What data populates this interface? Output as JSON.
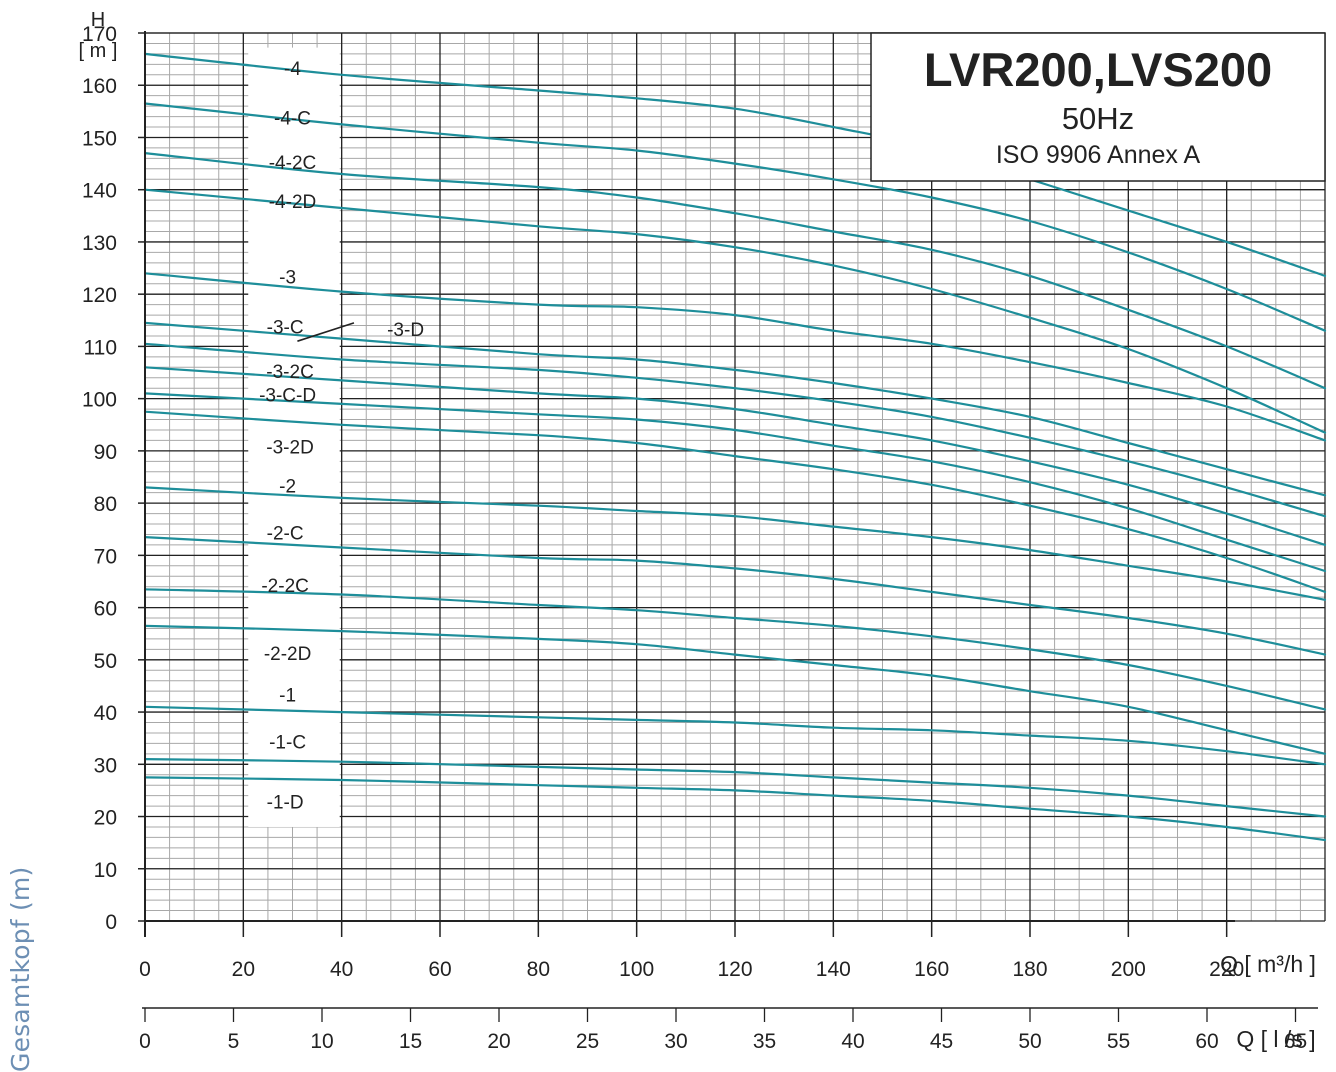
{
  "side_label": "Gesamtkopf (m)",
  "chart_data": {
    "type": "line",
    "title": "LVR200,LVS200",
    "subtitle_lines": [
      "50Hz",
      "ISO 9906  Annex A"
    ],
    "y_axis": {
      "label_top": "H",
      "label_unit": "[ m ]",
      "range": [
        0,
        170
      ],
      "ticks": [
        0,
        10,
        20,
        30,
        40,
        50,
        60,
        70,
        80,
        90,
        100,
        110,
        120,
        130,
        140,
        150,
        160,
        170
      ]
    },
    "x_axis": {
      "label": "Q [ m³/h ]",
      "range": [
        0,
        240
      ],
      "ticks": [
        0,
        20,
        40,
        60,
        80,
        100,
        120,
        140,
        160,
        180,
        200,
        220
      ]
    },
    "x_axis_secondary": {
      "label": "Q [ l /s ]",
      "ticks": [
        "0",
        "5",
        "10",
        "15",
        "20",
        "25",
        "30",
        "35",
        "40",
        "45",
        "50",
        "55",
        "60",
        "65"
      ]
    },
    "grid": true,
    "colors": {
      "curve": "#1e8e9a",
      "grid": "#222222",
      "minor_grid": "#a8a8a8",
      "text": "#222222"
    },
    "series": [
      {
        "name": "-4",
        "x": [
          0,
          40,
          80,
          100,
          120,
          140,
          160,
          180,
          200,
          220,
          240
        ],
        "y": [
          166,
          162,
          159,
          157.5,
          155.5,
          152,
          148,
          142,
          136,
          130,
          123.5
        ]
      },
      {
        "name": "-4-C",
        "x": [
          0,
          40,
          80,
          100,
          120,
          140,
          160,
          180,
          200,
          220,
          240
        ],
        "y": [
          156.5,
          152.5,
          149,
          147.5,
          145,
          142,
          138.5,
          134,
          128,
          121,
          113
        ]
      },
      {
        "name": "-4-2C",
        "x": [
          0,
          40,
          80,
          100,
          120,
          140,
          160,
          180,
          200,
          220,
          240
        ],
        "y": [
          147,
          143,
          140.5,
          138.5,
          135.5,
          132,
          128.5,
          123.5,
          117,
          110,
          102
        ]
      },
      {
        "name": "-4-2D",
        "x": [
          0,
          40,
          80,
          100,
          120,
          140,
          160,
          180,
          200,
          220,
          240
        ],
        "y": [
          140,
          136.5,
          133,
          131.5,
          129,
          125.5,
          121,
          115.5,
          109.5,
          102,
          93.5
        ]
      },
      {
        "name": "-3",
        "x": [
          0,
          40,
          80,
          100,
          120,
          140,
          160,
          180,
          200,
          220,
          240
        ],
        "y": [
          124,
          120.5,
          118,
          117.5,
          116,
          113,
          110.5,
          107,
          103,
          98.5,
          92
        ]
      },
      {
        "name": "-3-C",
        "x": [
          0,
          40,
          80,
          100,
          120,
          140,
          160,
          180,
          200,
          220,
          240
        ],
        "y": [
          114.5,
          111.5,
          108.5,
          107.5,
          105.5,
          103,
          100,
          96.5,
          91.5,
          86.5,
          81.5
        ]
      },
      {
        "name": "-3-D",
        "x": [
          0,
          40,
          80,
          100,
          120,
          140,
          160,
          180,
          200,
          220,
          240
        ],
        "y": [
          110.5,
          107.5,
          105.5,
          104,
          102,
          99.5,
          96.5,
          92.5,
          88,
          83,
          77.5
        ]
      },
      {
        "name": "-3-2C",
        "x": [
          0,
          40,
          80,
          100,
          120,
          140,
          160,
          180,
          200,
          220,
          240
        ],
        "y": [
          106,
          103.5,
          101,
          100,
          98,
          95,
          92,
          88,
          83.5,
          78,
          72
        ]
      },
      {
        "name": "-3-C-D",
        "x": [
          0,
          40,
          80,
          100,
          120,
          140,
          160,
          180,
          200,
          220,
          240
        ],
        "y": [
          101,
          99,
          97,
          96,
          94,
          91,
          88,
          84,
          79,
          73,
          67
        ]
      },
      {
        "name": "-3-2D",
        "x": [
          0,
          40,
          80,
          100,
          120,
          140,
          160,
          180,
          200,
          220,
          240
        ],
        "y": [
          97.5,
          95,
          93,
          91.5,
          89,
          86.5,
          83.5,
          79.5,
          75,
          69.5,
          63
        ]
      },
      {
        "name": "-2",
        "x": [
          0,
          40,
          80,
          100,
          120,
          140,
          160,
          180,
          200,
          220,
          240
        ],
        "y": [
          83,
          81,
          79.5,
          78.5,
          77.5,
          75.5,
          73.5,
          71,
          68,
          65,
          61.5
        ]
      },
      {
        "name": "-2-C",
        "x": [
          0,
          40,
          80,
          100,
          120,
          140,
          160,
          180,
          200,
          220,
          240
        ],
        "y": [
          73.5,
          71.5,
          69.5,
          69,
          67.5,
          65.5,
          63,
          60.5,
          58,
          55,
          51
        ]
      },
      {
        "name": "-2-2C",
        "x": [
          0,
          40,
          80,
          100,
          120,
          140,
          160,
          180,
          200,
          220,
          240
        ],
        "y": [
          63.5,
          62.5,
          60.5,
          59.5,
          58,
          56.5,
          54.5,
          52,
          49,
          45,
          40.5
        ]
      },
      {
        "name": "-2-2D",
        "x": [
          0,
          40,
          80,
          100,
          120,
          140,
          160,
          180,
          200,
          220,
          240
        ],
        "y": [
          56.5,
          55.5,
          54,
          53,
          51,
          49,
          47,
          44,
          41,
          36.5,
          32
        ]
      },
      {
        "name": "-1",
        "x": [
          0,
          40,
          80,
          100,
          120,
          140,
          160,
          180,
          200,
          220,
          240
        ],
        "y": [
          41,
          40,
          39,
          38.5,
          38,
          37,
          36.5,
          35.5,
          34.5,
          32.5,
          30
        ]
      },
      {
        "name": "-1-C",
        "x": [
          0,
          40,
          80,
          100,
          120,
          140,
          160,
          180,
          200,
          220,
          240
        ],
        "y": [
          31,
          30.5,
          29.5,
          29,
          28.5,
          27.5,
          26.5,
          25.5,
          24,
          22,
          20
        ]
      },
      {
        "name": "-1-D",
        "x": [
          0,
          40,
          80,
          100,
          120,
          140,
          160,
          180,
          200,
          220,
          240
        ],
        "y": [
          27.5,
          27,
          26,
          25.5,
          25,
          24,
          23,
          21.5,
          20,
          18,
          15.5
        ]
      }
    ],
    "curve_labels": [
      "-4",
      "-4-C",
      "-4-2C",
      "-4-2D",
      "-3",
      "-3-C",
      "-3-D",
      "-3-2C",
      "-3-C-D",
      "-3-2D",
      "-2",
      "-2-C",
      "-2-2C",
      "-2-2D",
      "-1",
      "-1-C",
      "-1-D"
    ]
  }
}
